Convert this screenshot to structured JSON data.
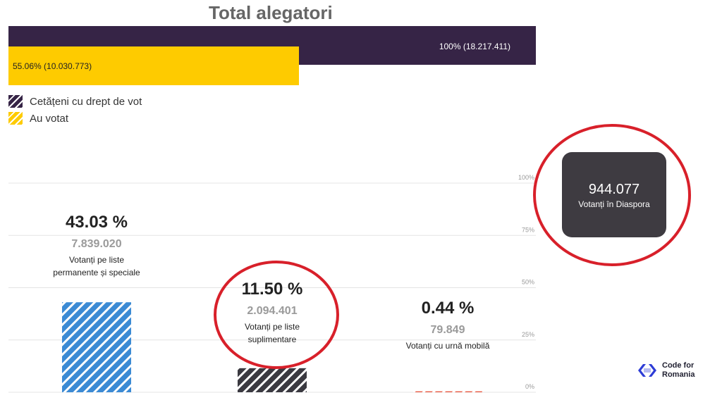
{
  "title": "Total alegatori",
  "totals": {
    "eligible_label": "100% (18.217.411)",
    "voted_label": "55.06% (10.030.773)",
    "eligible_pct": 100,
    "voted_pct": 55.06
  },
  "legend": [
    {
      "label": "Cetățeni cu drept de vot",
      "color": "#362446"
    },
    {
      "label": "Au votat",
      "color": "#fecb00"
    }
  ],
  "stats": [
    {
      "pct": "43.03 %",
      "count": "7.839.020",
      "label": "Votanți pe liste permanente și speciale"
    },
    {
      "pct": "11.50 %",
      "count": "2.094.401",
      "label": "Votanți pe liste suplimentare"
    },
    {
      "pct": "0.44 %",
      "count": "79.849",
      "label": "Votanți cu urnă mobilă"
    }
  ],
  "diaspora": {
    "count": "944.077",
    "label": "Votanți în Diaspora"
  },
  "logo": {
    "line1": "Code for",
    "line2": "Romania"
  },
  "chart_data": [
    {
      "type": "bar",
      "orientation": "horizontal",
      "title": "Total alegatori",
      "categories": [
        "Cetățeni cu drept de vot",
        "Au votat"
      ],
      "values": [
        100,
        55.06
      ],
      "absolute": [
        18217411,
        10030773
      ],
      "colors": [
        "#362446",
        "#fecb00"
      ],
      "legend": "top-left"
    },
    {
      "type": "bar",
      "categories": [
        "Votanți pe liste permanente și speciale",
        "Votanți pe liste suplimentare",
        "Votanți cu urnă mobilă"
      ],
      "values": [
        43.03,
        11.5,
        0.44
      ],
      "absolute": [
        7839020,
        2094401,
        79849
      ],
      "colors": [
        "#3b8ad4",
        "#3a3940",
        "#e8513a"
      ],
      "ylim": [
        0,
        100
      ],
      "yticks": [
        "0%",
        "25%",
        "50%",
        "75%",
        "100%"
      ],
      "grid": true
    }
  ]
}
